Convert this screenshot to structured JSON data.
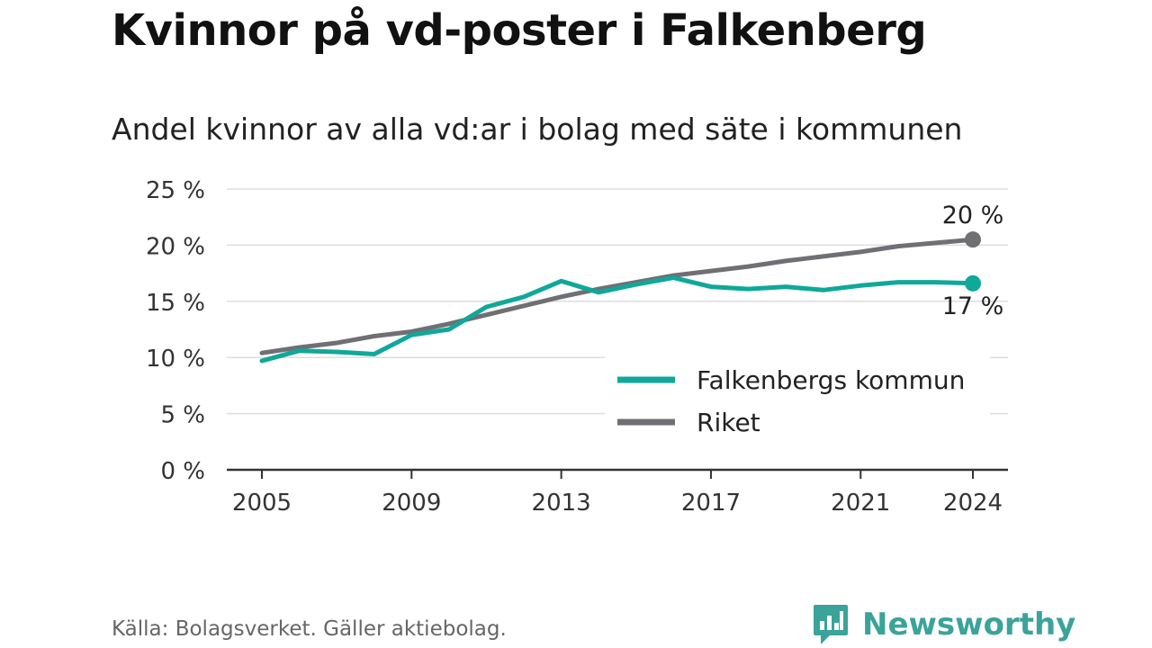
{
  "header": {
    "title": "Kvinnor på vd-poster i Falkenberg",
    "subtitle": "Andel kvinnor av alla vd:ar i bolag med säte i kommunen"
  },
  "footer": {
    "source": "Källa: Bolagsverket. Gäller aktiebolag.",
    "brand": "Newsworthy",
    "brand_icon": "bar-chart-speech-bubble-icon"
  },
  "colors": {
    "falkenberg": "#0fa89a",
    "riket": "#6f6f74",
    "grid": "#dddddd",
    "axis": "#333333",
    "brand": "#3aa39a"
  },
  "chart_data": {
    "type": "line",
    "title": "Kvinnor på vd-poster i Falkenberg",
    "subtitle": "Andel kvinnor av alla vd:ar i bolag med säte i kommunen",
    "x": [
      2005,
      2006,
      2007,
      2008,
      2009,
      2010,
      2011,
      2012,
      2013,
      2014,
      2015,
      2016,
      2017,
      2018,
      2019,
      2020,
      2021,
      2022,
      2023,
      2024
    ],
    "x_ticks": [
      2005,
      2009,
      2013,
      2017,
      2021,
      2024
    ],
    "x_tick_labels": [
      "2005",
      "2009",
      "2013",
      "2017",
      "2021",
      "2024"
    ],
    "ylim": [
      0,
      25
    ],
    "y_ticks": [
      0,
      5,
      10,
      15,
      20,
      25
    ],
    "y_tick_labels": [
      "0 %",
      "5 %",
      "10 %",
      "15 %",
      "20 %",
      "25 %"
    ],
    "grid": true,
    "legend_position": "bottom-right",
    "series": [
      {
        "name": "Falkenbergs kommun",
        "color": "#0fa89a",
        "values": [
          9.7,
          10.6,
          10.5,
          10.3,
          12.0,
          12.5,
          14.5,
          15.4,
          16.8,
          15.8,
          16.5,
          17.1,
          16.3,
          16.1,
          16.3,
          16.0,
          16.4,
          16.7,
          16.7,
          16.6
        ],
        "end_label": "17 %"
      },
      {
        "name": "Riket",
        "color": "#6f6f74",
        "values": [
          10.4,
          10.9,
          11.3,
          11.9,
          12.3,
          13.0,
          13.8,
          14.6,
          15.4,
          16.1,
          16.7,
          17.3,
          17.7,
          18.1,
          18.6,
          19.0,
          19.4,
          19.9,
          20.2,
          20.5
        ],
        "end_label": "20 %"
      }
    ]
  }
}
